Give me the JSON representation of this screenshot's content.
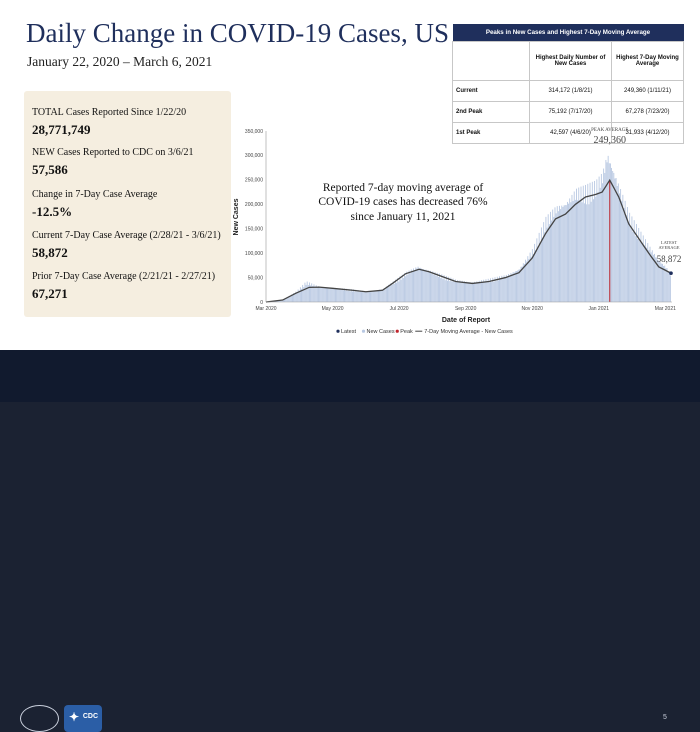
{
  "slide": {
    "title": "Daily Change in COVID-19 Cases, US",
    "subtitle": "January 22, 2020 – March 6, 2021",
    "page_number": "5"
  },
  "stats": [
    {
      "label": "TOTAL Cases Reported Since 1/22/20",
      "value": "28,771,749"
    },
    {
      "label": "NEW Cases Reported to CDC on 3/6/21",
      "value": "57,586"
    },
    {
      "label": "Change in 7-Day Case Average",
      "value": "-12.5%"
    },
    {
      "label": "Current 7-Day Case Average (2/28/21 - 3/6/21)",
      "value": "58,872"
    },
    {
      "label": "Prior 7-Day Case Average (2/21/21 - 2/27/21)",
      "value": "67,271"
    }
  ],
  "peaks_table": {
    "title": "Peaks in New Cases and Highest  7-Day Moving Average",
    "col_headers": [
      "Highest Daily Number of New Cases",
      "Highest 7-Day Moving Average"
    ],
    "rows": [
      {
        "label": "Current",
        "daily": "314,172 (1/8/21)",
        "avg": "249,360 (1/11/21)"
      },
      {
        "label": "2nd Peak",
        "daily": "75,192 (7/17/20)",
        "avg": "67,278 (7/23/20)"
      },
      {
        "label": "1st Peak",
        "daily": "42,597 (4/6/20)",
        "avg": "31,933 (4/12/20)"
      }
    ]
  },
  "annotation": "Reported 7-day moving average of COVID-19 cases has decreased  76% since January 11, 2021",
  "footer_logos": {
    "cdc_text": "CDC",
    "cdc_icon": "eagle-icon",
    "seal_icon": "white-house-seal-icon"
  },
  "chart_data": {
    "type": "bar",
    "ylabel": "New Cases",
    "xlabel": "Date of Report",
    "ylim": [
      0,
      350000
    ],
    "yticks": [
      "0",
      "50,000",
      "100,000",
      "150,000",
      "200,000",
      "250,000",
      "300,000",
      "350,000"
    ],
    "xticks": [
      "Mar 2020",
      "May 2020",
      "Jul 2020",
      "Sep 2020",
      "Nov 2020",
      "Jan 2021",
      "Mar 2021"
    ],
    "x_months_from_jan_2020": [
      2,
      4,
      6,
      8,
      10,
      12,
      14
    ],
    "x_range_months": [
      2,
      14.2
    ],
    "grid": false,
    "legend": [
      "Latest",
      "New Cases",
      "Peak",
      "7-Day Moving Average - New Cases"
    ],
    "legend_placement": "bottom",
    "colors": {
      "bars": "#b8c8e2",
      "average": "#444444",
      "peak": "#c0262d",
      "latest": "#1f2f5c"
    },
    "peak_label_1": "PEAK AVERAGE",
    "peak_value_label": "249,360",
    "latest_label_1": "LATEST",
    "latest_label_2": "AVERAGE",
    "latest_value_label": "58,872",
    "peak_average": {
      "month": 12.33,
      "value": 249360
    },
    "latest_average": {
      "month": 14.17,
      "value": 58872
    },
    "moving_average": [
      {
        "m": 2.0,
        "v": 0
      },
      {
        "m": 2.5,
        "v": 4000
      },
      {
        "m": 2.9,
        "v": 18000
      },
      {
        "m": 3.3,
        "v": 30000
      },
      {
        "m": 3.6,
        "v": 30500
      },
      {
        "m": 4.0,
        "v": 28000
      },
      {
        "m": 4.6,
        "v": 24000
      },
      {
        "m": 5.0,
        "v": 21000
      },
      {
        "m": 5.5,
        "v": 24000
      },
      {
        "m": 5.8,
        "v": 38000
      },
      {
        "m": 6.2,
        "v": 58000
      },
      {
        "m": 6.6,
        "v": 67000
      },
      {
        "m": 6.9,
        "v": 62000
      },
      {
        "m": 7.3,
        "v": 52000
      },
      {
        "m": 7.7,
        "v": 42000
      },
      {
        "m": 8.2,
        "v": 38000
      },
      {
        "m": 8.7,
        "v": 42000
      },
      {
        "m": 9.2,
        "v": 50000
      },
      {
        "m": 9.6,
        "v": 60000
      },
      {
        "m": 10.0,
        "v": 90000
      },
      {
        "m": 10.4,
        "v": 140000
      },
      {
        "m": 10.7,
        "v": 170000
      },
      {
        "m": 11.0,
        "v": 180000
      },
      {
        "m": 11.3,
        "v": 200000
      },
      {
        "m": 11.6,
        "v": 215000
      },
      {
        "m": 11.9,
        "v": 220000
      },
      {
        "m": 12.1,
        "v": 225000
      },
      {
        "m": 12.33,
        "v": 249360
      },
      {
        "m": 12.6,
        "v": 215000
      },
      {
        "m": 12.9,
        "v": 160000
      },
      {
        "m": 13.2,
        "v": 130000
      },
      {
        "m": 13.5,
        "v": 100000
      },
      {
        "m": 13.8,
        "v": 72000
      },
      {
        "m": 14.0,
        "v": 65000
      },
      {
        "m": 14.17,
        "v": 58872
      }
    ],
    "daily_cases": [
      {
        "m": 2.0,
        "v": 0
      },
      {
        "m": 2.5,
        "v": 5000
      },
      {
        "m": 2.9,
        "v": 22000
      },
      {
        "m": 3.2,
        "v": 42597
      },
      {
        "m": 3.6,
        "v": 32000
      },
      {
        "m": 4.0,
        "v": 30000
      },
      {
        "m": 4.6,
        "v": 26000
      },
      {
        "m": 5.0,
        "v": 22000
      },
      {
        "m": 5.5,
        "v": 27000
      },
      {
        "m": 5.8,
        "v": 42000
      },
      {
        "m": 6.2,
        "v": 62000
      },
      {
        "m": 6.55,
        "v": 75192
      },
      {
        "m": 6.9,
        "v": 66000
      },
      {
        "m": 7.3,
        "v": 56000
      },
      {
        "m": 7.7,
        "v": 46000
      },
      {
        "m": 8.2,
        "v": 42000
      },
      {
        "m": 8.7,
        "v": 48000
      },
      {
        "m": 9.2,
        "v": 56000
      },
      {
        "m": 9.6,
        "v": 70000
      },
      {
        "m": 10.0,
        "v": 110000
      },
      {
        "m": 10.4,
        "v": 175000
      },
      {
        "m": 10.7,
        "v": 200000
      },
      {
        "m": 11.0,
        "v": 210000
      },
      {
        "m": 11.3,
        "v": 235000
      },
      {
        "m": 11.6,
        "v": 240000
      },
      {
        "m": 11.9,
        "v": 250000
      },
      {
        "m": 12.1,
        "v": 270000
      },
      {
        "m": 12.25,
        "v": 314172
      },
      {
        "m": 12.6,
        "v": 245000
      },
      {
        "m": 12.9,
        "v": 185000
      },
      {
        "m": 13.2,
        "v": 150000
      },
      {
        "m": 13.5,
        "v": 118000
      },
      {
        "m": 13.8,
        "v": 88000
      },
      {
        "m": 14.0,
        "v": 75000
      },
      {
        "m": 14.17,
        "v": 57586
      }
    ]
  }
}
